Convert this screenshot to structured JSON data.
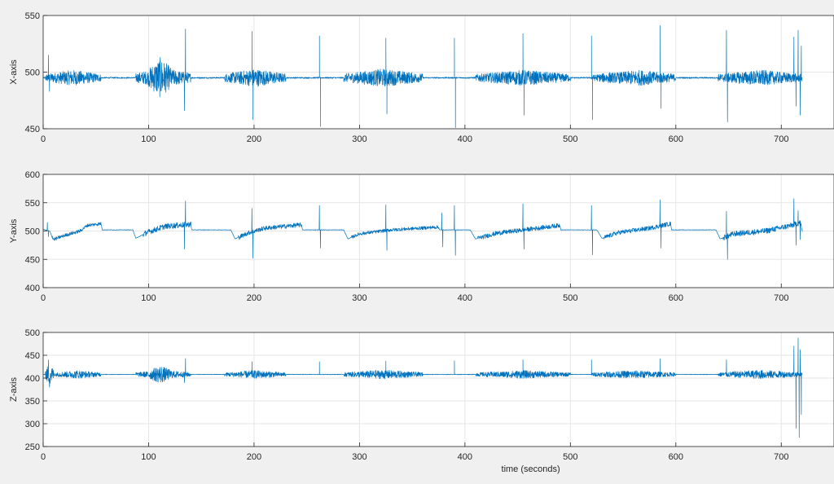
{
  "chart_data": [
    {
      "type": "line",
      "panel": "x",
      "title": "",
      "xlabel": "",
      "ylabel": "X-axis",
      "xlim": [
        0,
        750
      ],
      "ylim": [
        450,
        550
      ],
      "xticks": [
        0,
        100,
        200,
        300,
        400,
        500,
        600,
        700
      ],
      "yticks": [
        450,
        500,
        550
      ],
      "grid": true,
      "color": "#0072bd",
      "series": [
        {
          "baseline": 495,
          "bursts": [
            {
              "start": 2,
              "end": 55,
              "amp": 7
            },
            {
              "start": 88,
              "end": 140,
              "amp": 9
            },
            {
              "start": 100,
              "end": 122,
              "amp": 18
            },
            {
              "start": 172,
              "end": 230,
              "amp": 8
            },
            {
              "start": 285,
              "end": 360,
              "amp": 8
            },
            {
              "start": 410,
              "end": 500,
              "amp": 7
            },
            {
              "start": 520,
              "end": 555,
              "amp": 5
            },
            {
              "start": 530,
              "end": 600,
              "amp": 7
            },
            {
              "start": 640,
              "end": 720,
              "amp": 7
            }
          ],
          "spikes": [
            {
              "x": 5,
              "y": 515
            },
            {
              "x": 6,
              "y": 483
            },
            {
              "x": 135,
              "y": 538
            },
            {
              "x": 134,
              "y": 466
            },
            {
              "x": 198,
              "y": 536
            },
            {
              "x": 199,
              "y": 458
            },
            {
              "x": 262,
              "y": 532
            },
            {
              "x": 263,
              "y": 452
            },
            {
              "x": 325,
              "y": 530
            },
            {
              "x": 326,
              "y": 463
            },
            {
              "x": 390,
              "y": 530
            },
            {
              "x": 391,
              "y": 451
            },
            {
              "x": 455,
              "y": 534
            },
            {
              "x": 456,
              "y": 462
            },
            {
              "x": 520,
              "y": 532
            },
            {
              "x": 521,
              "y": 458
            },
            {
              "x": 585,
              "y": 541
            },
            {
              "x": 586,
              "y": 468
            },
            {
              "x": 648,
              "y": 537
            },
            {
              "x": 649,
              "y": 456
            },
            {
              "x": 712,
              "y": 531
            },
            {
              "x": 714,
              "y": 470
            },
            {
              "x": 716,
              "y": 537
            },
            {
              "x": 718,
              "y": 462
            },
            {
              "x": 719,
              "y": 523
            }
          ]
        }
      ]
    },
    {
      "type": "line",
      "panel": "y",
      "title": "",
      "xlabel": "",
      "ylabel": "Y-axis",
      "xlim": [
        0,
        750
      ],
      "ylim": [
        400,
        600
      ],
      "xticks": [
        0,
        100,
        200,
        300,
        400,
        500,
        600,
        700
      ],
      "yticks": [
        400,
        450,
        500,
        550,
        600
      ],
      "grid": true,
      "color": "#0072bd",
      "series": [
        {
          "levels": [
            [
              0,
              503
            ],
            [
              6,
              500
            ],
            [
              10,
              485
            ],
            [
              20,
              492
            ],
            [
              35,
              500
            ],
            [
              42,
              510
            ],
            [
              55,
              513
            ],
            [
              56,
              502
            ],
            [
              85,
              502
            ],
            [
              88,
              487
            ],
            [
              98,
              497
            ],
            [
              115,
              508
            ],
            [
              140,
              512
            ],
            [
              141,
              502
            ],
            [
              178,
              502
            ],
            [
              182,
              486
            ],
            [
              195,
              497
            ],
            [
              210,
              505
            ],
            [
              245,
              511
            ],
            [
              246,
              502
            ],
            [
              285,
              502
            ],
            [
              289,
              486
            ],
            [
              300,
              495
            ],
            [
              330,
              502
            ],
            [
              375,
              507
            ],
            [
              376,
              502
            ],
            [
              405,
              502
            ],
            [
              410,
              486
            ],
            [
              430,
              496
            ],
            [
              460,
              503
            ],
            [
              490,
              510
            ],
            [
              491,
              502
            ],
            [
              525,
              502
            ],
            [
              530,
              487
            ],
            [
              545,
              497
            ],
            [
              575,
              505
            ],
            [
              595,
              513
            ],
            [
              596,
              502
            ],
            [
              638,
              502
            ],
            [
              642,
              486
            ],
            [
              655,
              495
            ],
            [
              685,
              500
            ],
            [
              710,
              510
            ],
            [
              718,
              515
            ],
            [
              720,
              498
            ]
          ],
          "noisy": [
            {
              "start": 8,
              "end": 55,
              "amp": 3
            },
            {
              "start": 95,
              "end": 140,
              "amp": 5
            },
            {
              "start": 185,
              "end": 245,
              "amp": 4
            },
            {
              "start": 292,
              "end": 375,
              "amp": 3
            },
            {
              "start": 412,
              "end": 490,
              "amp": 4
            },
            {
              "start": 532,
              "end": 595,
              "amp": 4
            },
            {
              "start": 645,
              "end": 720,
              "amp": 5
            }
          ],
          "spikes": [
            {
              "x": 4,
              "y": 515
            },
            {
              "x": 5,
              "y": 490
            },
            {
              "x": 135,
              "y": 553
            },
            {
              "x": 134,
              "y": 468
            },
            {
              "x": 198,
              "y": 540
            },
            {
              "x": 199,
              "y": 452
            },
            {
              "x": 262,
              "y": 545
            },
            {
              "x": 263,
              "y": 470
            },
            {
              "x": 325,
              "y": 546
            },
            {
              "x": 326,
              "y": 466
            },
            {
              "x": 378,
              "y": 532
            },
            {
              "x": 379,
              "y": 472
            },
            {
              "x": 390,
              "y": 545
            },
            {
              "x": 391,
              "y": 457
            },
            {
              "x": 455,
              "y": 548
            },
            {
              "x": 456,
              "y": 468
            },
            {
              "x": 520,
              "y": 545
            },
            {
              "x": 521,
              "y": 458
            },
            {
              "x": 585,
              "y": 555
            },
            {
              "x": 586,
              "y": 470
            },
            {
              "x": 648,
              "y": 535
            },
            {
              "x": 649,
              "y": 450
            },
            {
              "x": 712,
              "y": 557
            },
            {
              "x": 714,
              "y": 475
            },
            {
              "x": 716,
              "y": 536
            },
            {
              "x": 718,
              "y": 485
            }
          ]
        }
      ]
    },
    {
      "type": "line",
      "panel": "z",
      "title": "",
      "xlabel": "time (seconds)",
      "ylabel": "Z-axis",
      "xlim": [
        0,
        750
      ],
      "ylim": [
        250,
        500
      ],
      "xticks": [
        0,
        100,
        200,
        300,
        400,
        500,
        600,
        700
      ],
      "yticks": [
        250,
        300,
        350,
        400,
        450,
        500
      ],
      "grid": true,
      "color": "#0072bd",
      "series": [
        {
          "baseline": 408,
          "bursts": [
            {
              "start": 2,
              "end": 10,
              "amp": 25
            },
            {
              "start": 10,
              "end": 55,
              "amp": 9
            },
            {
              "start": 88,
              "end": 140,
              "amp": 10
            },
            {
              "start": 100,
              "end": 122,
              "amp": 20
            },
            {
              "start": 172,
              "end": 230,
              "amp": 9
            },
            {
              "start": 285,
              "end": 360,
              "amp": 10
            },
            {
              "start": 410,
              "end": 500,
              "amp": 9
            },
            {
              "start": 520,
              "end": 600,
              "amp": 9
            },
            {
              "start": 640,
              "end": 720,
              "amp": 10
            }
          ],
          "spikes": [
            {
              "x": 5,
              "y": 440
            },
            {
              "x": 6,
              "y": 380
            },
            {
              "x": 135,
              "y": 443
            },
            {
              "x": 134,
              "y": 390
            },
            {
              "x": 198,
              "y": 436
            },
            {
              "x": 262,
              "y": 436
            },
            {
              "x": 325,
              "y": 437
            },
            {
              "x": 390,
              "y": 438
            },
            {
              "x": 455,
              "y": 440
            },
            {
              "x": 520,
              "y": 440
            },
            {
              "x": 585,
              "y": 442
            },
            {
              "x": 648,
              "y": 440
            },
            {
              "x": 712,
              "y": 470
            },
            {
              "x": 714,
              "y": 290
            },
            {
              "x": 716,
              "y": 488
            },
            {
              "x": 717,
              "y": 270
            },
            {
              "x": 718,
              "y": 462
            },
            {
              "x": 719,
              "y": 320
            }
          ]
        }
      ]
    }
  ]
}
